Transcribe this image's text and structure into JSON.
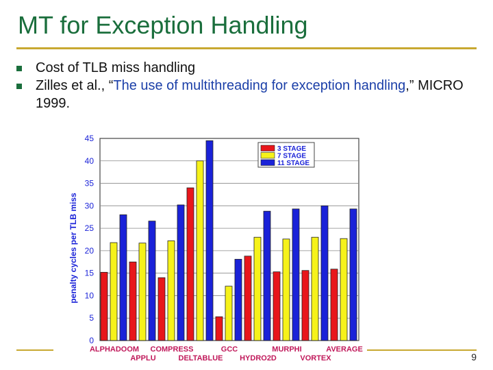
{
  "slide": {
    "title": "MT for Exception Handling",
    "bullets": [
      {
        "text": "Cost of TLB miss handling"
      },
      {
        "prefix": "Zilles et al., “",
        "highlight1": "The use of multithreading for exception handling",
        "suffix": ",” MICRO 1999."
      }
    ],
    "page_number": "9"
  },
  "colors": {
    "title": "#1a6e3c",
    "rule": "#c8a830",
    "link_blue": "#1b3fa8"
  },
  "chart_data": {
    "type": "bar",
    "title": "",
    "xlabel": "",
    "ylabel": "penalty cycles per TLB miss",
    "ylim": [
      0,
      45
    ],
    "yticks": [
      0,
      5,
      10,
      15,
      20,
      25,
      30,
      35,
      40,
      45
    ],
    "grid": true,
    "legend_position": "top-right",
    "categories": [
      "ALPHADOOM",
      "APPLU",
      "COMPRESS",
      "DELTABLUE",
      "GCC",
      "HYDRO2D",
      "MURPHI",
      "VORTEX",
      "AVERAGE"
    ],
    "series": [
      {
        "name": "3 STAGE",
        "color": "#e8161b",
        "values": [
          15.2,
          17.5,
          14.0,
          34.0,
          5.3,
          18.8,
          15.3,
          15.6,
          15.9
        ]
      },
      {
        "name": "7 STAGE",
        "color": "#f6f21a",
        "values": [
          21.8,
          21.7,
          22.2,
          40.0,
          12.1,
          23.0,
          22.6,
          23.0,
          22.7
        ]
      },
      {
        "name": "11 STAGE",
        "color": "#1a22d8",
        "values": [
          28.0,
          26.6,
          30.2,
          44.5,
          18.1,
          28.8,
          29.3,
          30.0,
          29.3
        ]
      }
    ]
  }
}
